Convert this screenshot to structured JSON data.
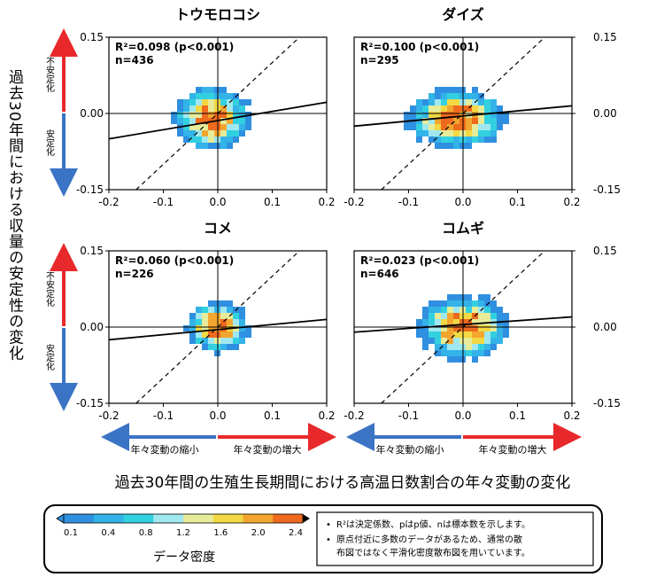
{
  "y_axis_title": "過去30年間における収量の安定性の変化",
  "x_axis_title": "過去30年間の生殖生長期間における高温日数割合の年々変動の変化",
  "unstable_label": "不安定化",
  "stable_label": "安定化",
  "variability_decrease_label": "年々変動の縮小",
  "variability_increase_label": "年々変動の増大",
  "colorbar": {
    "title": "データ密度",
    "ticks": [
      "0.1",
      "0.4",
      "0.8",
      "1.2",
      "1.6",
      "2.0",
      "2.4"
    ],
    "colors": [
      "#2f8fe0",
      "#33b3e8",
      "#33d0e0",
      "#9fe8f0",
      "#e6ec9a",
      "#f2d843",
      "#f2a630",
      "#ee6a1e"
    ]
  },
  "notes": [
    "R²は決定係数、pはp値、nは標本数を示します。",
    "原点付近に多数のデータがあるため、通常の散布図ではなく平滑化密度散布図を用いています。"
  ],
  "chart_data": [
    {
      "type": "heatmap",
      "title": "トウモロコシ",
      "stat_r2": "R²=0.098 (p<0.001)",
      "stat_n": "n=436",
      "x_ticks": [
        "-0.2",
        "-0.1",
        "0.0",
        "0.1",
        "0.2"
      ],
      "y_ticks": [
        "0.15",
        "0.00",
        "-0.15"
      ],
      "xlim": [
        -0.2,
        0.2
      ],
      "ylim": [
        -0.15,
        0.15
      ],
      "regression_line": [
        [
          -0.2,
          -0.05
        ],
        [
          0.2,
          0.022
        ]
      ],
      "one_to_one_line": [
        [
          -0.15,
          -0.15
        ],
        [
          0.15,
          0.15
        ]
      ],
      "density_peak": [
        -0.01,
        -0.01
      ],
      "density_spread": [
        0.085,
        0.075
      ]
    },
    {
      "type": "heatmap",
      "title": "ダイズ",
      "stat_r2": "R²=0.100 (p<0.001)",
      "stat_n": "n=295",
      "x_ticks": [
        "-0.2",
        "-0.1",
        "0.0",
        "0.1",
        "0.2"
      ],
      "y_ticks": [
        "0.15",
        "0.00",
        "-0.15"
      ],
      "xlim": [
        -0.2,
        0.2
      ],
      "ylim": [
        -0.15,
        0.15
      ],
      "regression_line": [
        [
          -0.2,
          -0.025
        ],
        [
          0.2,
          0.015
        ]
      ],
      "one_to_one_line": [
        [
          -0.15,
          -0.15
        ],
        [
          0.15,
          0.15
        ]
      ],
      "density_peak": [
        -0.01,
        -0.01
      ],
      "density_spread": [
        0.11,
        0.07
      ]
    },
    {
      "type": "heatmap",
      "title": "コメ",
      "stat_r2": "R²=0.060 (p<0.001)",
      "stat_n": "n=226",
      "x_ticks": [
        "-0.2",
        "-0.1",
        "0.0",
        "0.1",
        "0.2"
      ],
      "y_ticks": [
        "0.15",
        "0.00",
        "-0.15"
      ],
      "xlim": [
        -0.2,
        0.2
      ],
      "ylim": [
        -0.15,
        0.15
      ],
      "regression_line": [
        [
          -0.2,
          -0.025
        ],
        [
          0.2,
          0.015
        ]
      ],
      "one_to_one_line": [
        [
          -0.15,
          -0.15
        ],
        [
          0.15,
          0.15
        ]
      ],
      "density_peak": [
        0.0,
        0.0
      ],
      "density_spread": [
        0.07,
        0.06
      ]
    },
    {
      "type": "heatmap",
      "title": "コムギ",
      "stat_r2": "R²=0.023 (p<0.001)",
      "stat_n": "n=646",
      "x_ticks": [
        "-0.2",
        "-0.1",
        "0.0",
        "0.1",
        "0.2"
      ],
      "y_ticks": [
        "0.15",
        "0.00",
        "-0.15"
      ],
      "xlim": [
        -0.2,
        0.2
      ],
      "ylim": [
        -0.15,
        0.15
      ],
      "regression_line": [
        [
          -0.2,
          -0.01
        ],
        [
          0.2,
          0.02
        ]
      ],
      "one_to_one_line": [
        [
          -0.15,
          -0.15
        ],
        [
          0.15,
          0.15
        ]
      ],
      "density_peak": [
        0.0,
        0.0
      ],
      "density_spread": [
        0.1,
        0.075
      ]
    }
  ]
}
